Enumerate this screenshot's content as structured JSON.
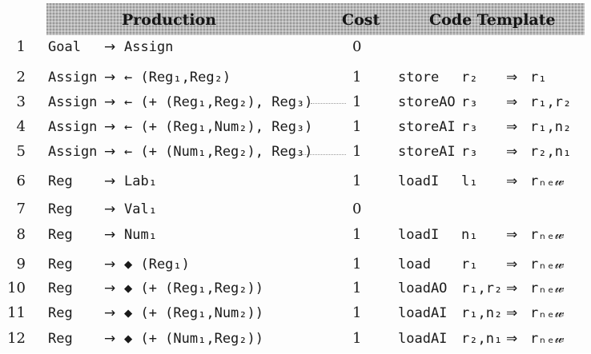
{
  "headers": {
    "production": "Production",
    "cost": "Cost",
    "template": "Code Template"
  },
  "rows": [
    {
      "num": "1",
      "lhs": "Goal",
      "arrow": "→",
      "rhs": "Assign",
      "cost": "0",
      "op": "",
      "args": "",
      "implies": "",
      "dest": ""
    },
    {
      "num": "2",
      "lhs": "Assign",
      "arrow": "→",
      "rhs": "← (Reg₁,Reg₂)",
      "cost": "1",
      "op": "store",
      "args": "r₂",
      "implies": "⇒",
      "dest": "r₁"
    },
    {
      "num": "3",
      "lhs": "Assign",
      "arrow": "→",
      "rhs": "← (+ (Reg₁,Reg₂), Reg₃)",
      "cost": "1",
      "op": "storeAO",
      "args": "r₃",
      "implies": "⇒",
      "dest": "r₁,r₂"
    },
    {
      "num": "4",
      "lhs": "Assign",
      "arrow": "→",
      "rhs": "← (+ (Reg₁,Num₂), Reg₃)",
      "cost": "1",
      "op": "storeAI",
      "args": "r₃",
      "implies": "⇒",
      "dest": "r₁,n₂"
    },
    {
      "num": "5",
      "lhs": "Assign",
      "arrow": "→",
      "rhs": "← (+ (Num₁,Reg₂), Reg₃)",
      "cost": "1",
      "op": "storeAI",
      "args": "r₃",
      "implies": "⇒",
      "dest": "r₂,n₁"
    },
    {
      "num": "6",
      "lhs": "Reg",
      "arrow": "→",
      "rhs": "Lab₁",
      "cost": "1",
      "op": "loadI",
      "args": "l₁",
      "implies": "⇒",
      "dest": "rₙₑ𝓌"
    },
    {
      "num": "7",
      "lhs": "Reg",
      "arrow": "→",
      "rhs": "Val₁",
      "cost": "0",
      "op": "",
      "args": "",
      "implies": "",
      "dest": ""
    },
    {
      "num": "8",
      "lhs": "Reg",
      "arrow": "→",
      "rhs": "Num₁",
      "cost": "1",
      "op": "loadI",
      "args": "n₁",
      "implies": "⇒",
      "dest": "rₙₑ𝓌"
    },
    {
      "num": "9",
      "lhs": "Reg",
      "arrow": "→",
      "rhs": "◆ (Reg₁)",
      "cost": "1",
      "op": "load",
      "args": "r₁",
      "implies": "⇒",
      "dest": "rₙₑ𝓌"
    },
    {
      "num": "10",
      "lhs": "Reg",
      "arrow": "→",
      "rhs": "◆ (+ (Reg₁,Reg₂))",
      "cost": "1",
      "op": "loadAO",
      "args": "r₁,r₂",
      "implies": "⇒",
      "dest": "rₙₑ𝓌"
    },
    {
      "num": "11",
      "lhs": "Reg",
      "arrow": "→",
      "rhs": "◆ (+ (Reg₁,Num₂))",
      "cost": "1",
      "op": "loadAI",
      "args": "r₁,n₂",
      "implies": "⇒",
      "dest": "rₙₑ𝓌"
    },
    {
      "num": "12",
      "lhs": "Reg",
      "arrow": "→",
      "rhs": "◆ (+ (Num₁,Reg₂))",
      "cost": "1",
      "op": "loadAI",
      "args": "r₂,n₁",
      "implies": "⇒",
      "dest": "rₙₑ𝓌"
    }
  ]
}
